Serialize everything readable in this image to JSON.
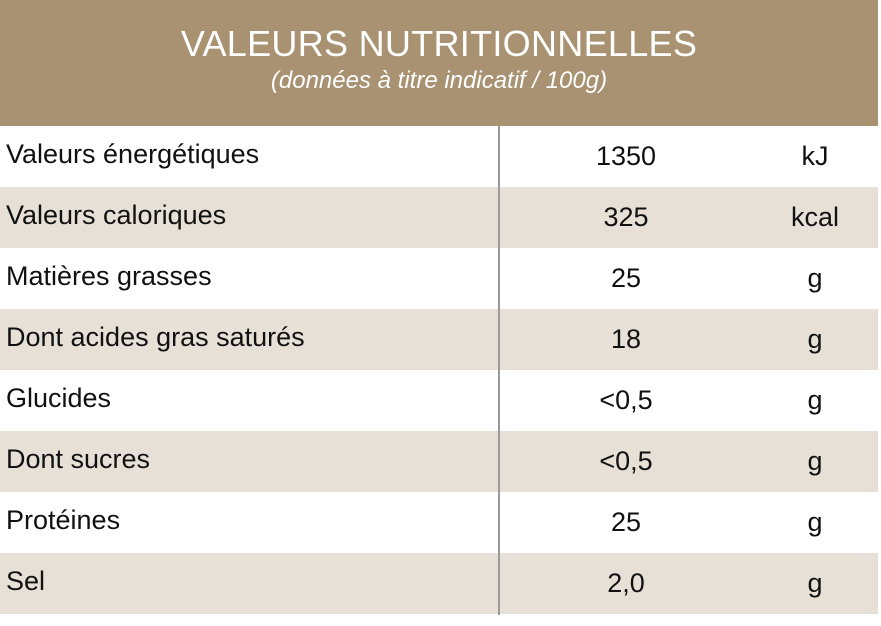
{
  "header": {
    "title": "VALEURS NUTRITIONNELLES",
    "subtitle": "(données à titre indicatif / 100g)"
  },
  "colors": {
    "header_background": "#a99272",
    "header_text": "#ffffff",
    "row_alt_background": "#e6e0d6",
    "divider": "#9a9a9a"
  },
  "rows": [
    {
      "label": "Valeurs énergétiques",
      "value": "1350",
      "unit": "kJ"
    },
    {
      "label": "Valeurs caloriques",
      "value": "325",
      "unit": "kcal"
    },
    {
      "label": "Matières grasses",
      "value": "25",
      "unit": "g"
    },
    {
      "label": "Dont acides gras saturés",
      "value": "18",
      "unit": "g"
    },
    {
      "label": "Glucides",
      "value": "<0,5",
      "unit": "g"
    },
    {
      "label": "Dont sucres",
      "value": "<0,5",
      "unit": "g"
    },
    {
      "label": "Protéines",
      "value": "25",
      "unit": "g"
    },
    {
      "label": "Sel",
      "value": "2,0",
      "unit": "g"
    }
  ]
}
